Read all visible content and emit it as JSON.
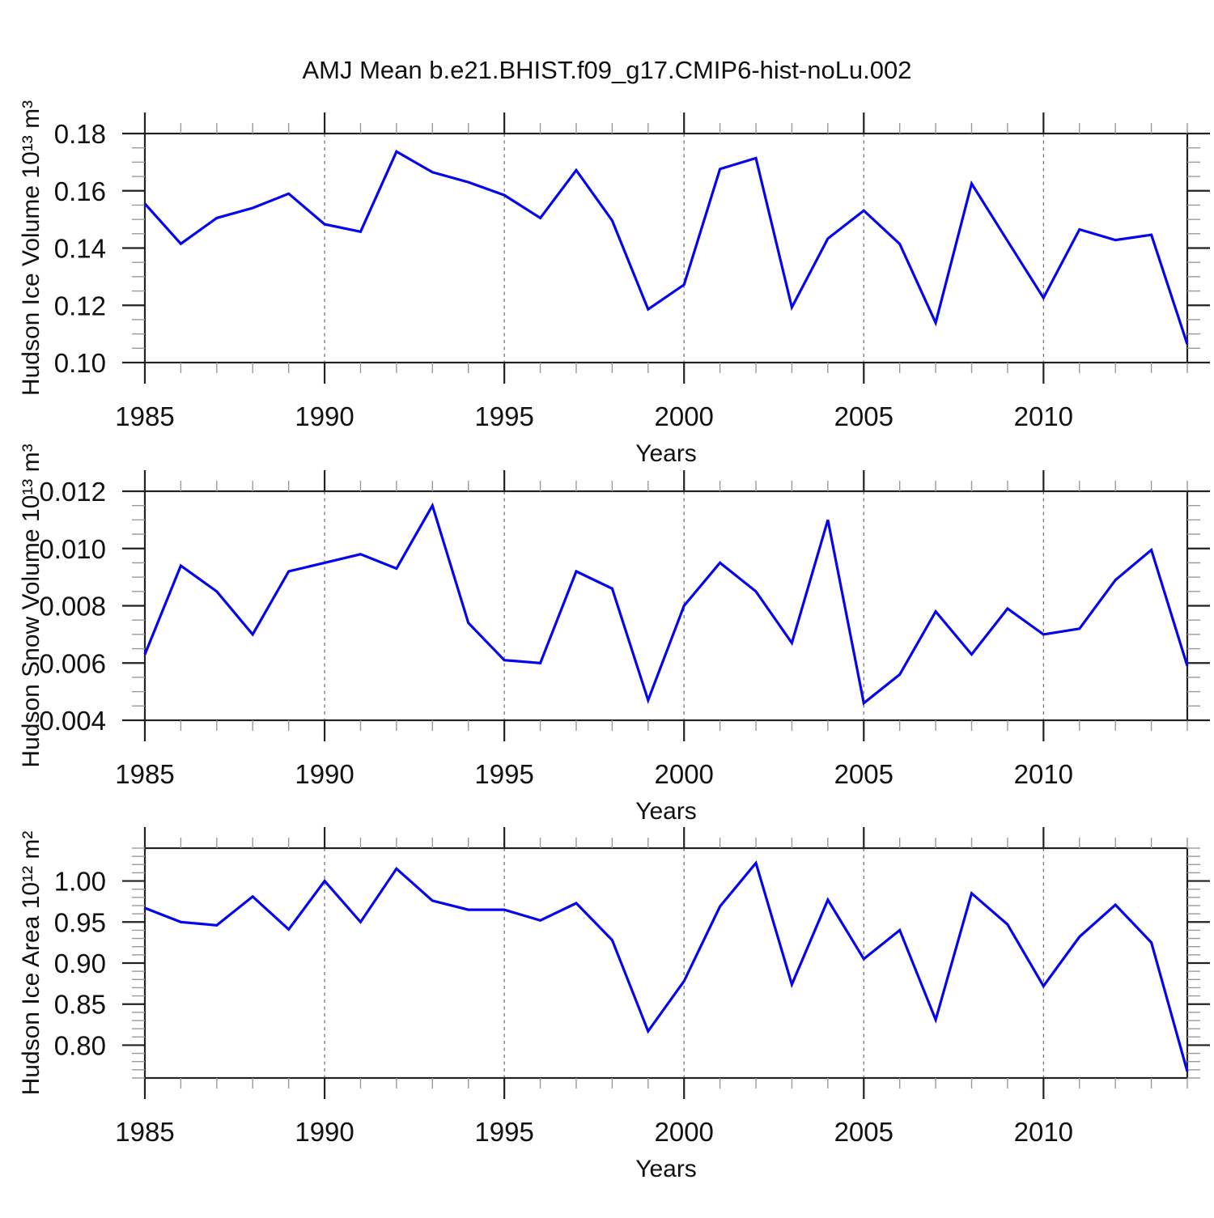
{
  "title": "AMJ Mean b.e21.BHIST.f09_g17.CMIP6-hist-noLu.002",
  "styles": {
    "line_color": "#0404ee",
    "frame_color": "#222222",
    "minor_tick_color": "#9a9a9a",
    "grid_color": "#808080",
    "text_color": "#111111",
    "background": "#ffffff"
  },
  "chart_data": [
    {
      "type": "line",
      "panel": "top",
      "ylabel": "Hudson Ice Volume 10¹³ m³",
      "xlabel": "Years",
      "x": [
        1985,
        1986,
        1987,
        1988,
        1989,
        1990,
        1991,
        1992,
        1993,
        1994,
        1995,
        1996,
        1997,
        1998,
        1999,
        2000,
        2001,
        2002,
        2003,
        2004,
        2005,
        2006,
        2007,
        2008,
        2009,
        2010,
        2011,
        2012,
        2013,
        2014
      ],
      "values": [
        0.1555,
        0.1415,
        0.1505,
        0.154,
        0.159,
        0.1483,
        0.1457,
        0.1737,
        0.1665,
        0.163,
        0.1585,
        0.1505,
        0.1672,
        0.1496,
        0.1186,
        0.1272,
        0.1676,
        0.1714,
        0.1193,
        0.1433,
        0.1531,
        0.1414,
        0.1139,
        0.1625,
        0.1425,
        0.1226,
        0.1465,
        0.1428,
        0.1446,
        0.1064
      ],
      "xlim": [
        1985,
        2014
      ],
      "ylim": [
        0.1,
        0.18
      ],
      "yticks": [
        0.1,
        0.12,
        0.14,
        0.16,
        0.18
      ],
      "ytick_labels": [
        "0.10",
        "0.12",
        "0.14",
        "0.16",
        "0.18"
      ],
      "yminor_step": 0.005,
      "xticks": [
        1985,
        1990,
        1995,
        2000,
        2005,
        2010
      ],
      "xtick_labels": [
        "1985",
        "1990",
        "1995",
        "2000",
        "2005",
        "2010"
      ],
      "xminor_step": 1,
      "grid_x": [
        1990,
        1995,
        2000,
        2005,
        2010
      ],
      "grid_style": "dashed",
      "legend": null
    },
    {
      "type": "line",
      "panel": "middle",
      "ylabel": "Hudson Snow Volume 10¹³ m³",
      "xlabel": "Years",
      "x": [
        1985,
        1986,
        1987,
        1988,
        1989,
        1990,
        1991,
        1992,
        1993,
        1994,
        1995,
        1996,
        1997,
        1998,
        1999,
        2000,
        2001,
        2002,
        2003,
        2004,
        2005,
        2006,
        2007,
        2008,
        2009,
        2010,
        2011,
        2012,
        2013,
        2014
      ],
      "values": [
        0.0063,
        0.0094,
        0.0085,
        0.007,
        0.0092,
        0.0095,
        0.0098,
        0.0093,
        0.0115,
        0.0074,
        0.0061,
        0.006,
        0.0092,
        0.0086,
        0.0047,
        0.008,
        0.0095,
        0.0085,
        0.0067,
        0.011,
        0.0046,
        0.0056,
        0.0078,
        0.0063,
        0.0079,
        0.007,
        0.0072,
        0.0089,
        0.00995,
        0.0059
      ],
      "xlim": [
        1985,
        2014
      ],
      "ylim": [
        0.004,
        0.012
      ],
      "yticks": [
        0.004,
        0.006,
        0.008,
        0.01,
        0.012
      ],
      "ytick_labels": [
        "0.004",
        "0.006",
        "0.008",
        "0.010",
        "0.012"
      ],
      "yminor_step": 0.0005,
      "xticks": [
        1985,
        1990,
        1995,
        2000,
        2005,
        2010
      ],
      "xtick_labels": [
        "1985",
        "1990",
        "1995",
        "2000",
        "2005",
        "2010"
      ],
      "xminor_step": 1,
      "grid_x": [
        1990,
        1995,
        2000,
        2005,
        2010
      ],
      "grid_style": "dashed",
      "legend": null
    },
    {
      "type": "line",
      "panel": "bottom",
      "ylabel": "Hudson Ice Area 10¹² m²",
      "xlabel": "Years",
      "x": [
        1985,
        1986,
        1987,
        1988,
        1989,
        1990,
        1991,
        1992,
        1993,
        1994,
        1995,
        1996,
        1997,
        1998,
        1999,
        2000,
        2001,
        2002,
        2003,
        2004,
        2005,
        2006,
        2007,
        2008,
        2009,
        2010,
        2011,
        2012,
        2013,
        2014
      ],
      "values": [
        0.967,
        0.95,
        0.946,
        0.981,
        0.941,
        1.0,
        0.95,
        1.015,
        0.976,
        0.965,
        0.965,
        0.952,
        0.973,
        0.928,
        0.817,
        0.878,
        0.969,
        1.022,
        0.874,
        0.977,
        0.905,
        0.94,
        0.831,
        0.985,
        0.947,
        0.872,
        0.932,
        0.971,
        0.925,
        0.768
      ],
      "xlim": [
        1985,
        2014
      ],
      "ylim": [
        0.76,
        1.04
      ],
      "yticks": [
        0.8,
        0.85,
        0.9,
        0.95,
        1.0
      ],
      "ytick_labels": [
        "0.80",
        "0.85",
        "0.90",
        "0.95",
        "1.00"
      ],
      "yminor_step": 0.01,
      "xticks": [
        1985,
        1990,
        1995,
        2000,
        2005,
        2010
      ],
      "xtick_labels": [
        "1985",
        "1990",
        "1995",
        "2000",
        "2005",
        "2010"
      ],
      "xminor_step": 1,
      "grid_x": [
        1990,
        1995,
        2000,
        2005,
        2010
      ],
      "grid_style": "dashed",
      "legend": null
    }
  ]
}
